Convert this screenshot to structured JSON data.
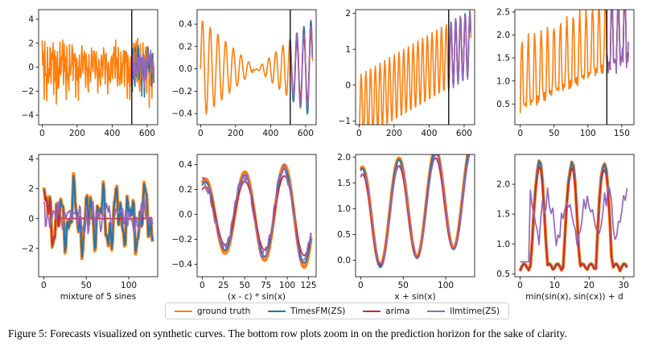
{
  "series_meta": [
    {
      "key": "truth",
      "name": "ground truth",
      "color": "#ff7f0e"
    },
    {
      "key": "timesfm",
      "name": "TimesFM(ZS)",
      "color": "#1f77b4"
    },
    {
      "key": "arima",
      "name": "arima",
      "color": "#d62728"
    },
    {
      "key": "llmtime",
      "name": "llmtime(ZS)",
      "color": "#9467bd"
    }
  ],
  "caption": "Figure 5: Forecasts visualized on synthetic curves. The bottom row plots zoom in on the prediction horizon for the sake of clarity.",
  "chart_data": [
    {
      "type": "line",
      "row": "top",
      "xlabel": "",
      "xlim": [
        -20,
        660
      ],
      "ylim": [
        -4.8,
        4.8
      ],
      "xticks": [
        0,
        200,
        400,
        600
      ],
      "xtick_labels": [
        "0",
        "200",
        "400",
        "600"
      ],
      "yticks": [
        -4,
        -2,
        0,
        2,
        4
      ],
      "ytick_labels": [
        "−4",
        "−2",
        "0",
        "2",
        "4"
      ],
      "split": 512,
      "series": [
        {
          "name": "ground truth",
          "generator": "mix5",
          "x_start": 0,
          "x_end": 640
        },
        {
          "name": "TimesFM(ZS)",
          "generator": "mix5_forecast",
          "x_start": 512,
          "x_end": 640
        },
        {
          "name": "arima",
          "generator": "flat",
          "x_start": 512,
          "x_end": 640
        },
        {
          "name": "llmtime(ZS)",
          "generator": "mix5_noisy",
          "x_start": 512,
          "x_end": 640
        }
      ]
    },
    {
      "type": "line",
      "row": "top",
      "xlabel": "",
      "xlim": [
        -20,
        660
      ],
      "ylim": [
        -0.5,
        0.53
      ],
      "xticks": [
        0,
        200,
        400,
        600
      ],
      "xtick_labels": [
        "0",
        "200",
        "400",
        "600"
      ],
      "yticks": [
        -0.4,
        -0.2,
        0,
        0.2,
        0.4
      ],
      "ytick_labels": [
        "−0.4",
        "−0.2",
        "0.0",
        "0.2",
        "0.4"
      ],
      "split": 512,
      "series": [
        {
          "name": "ground truth",
          "generator": "xc_sin",
          "x_start": 0,
          "x_end": 640
        },
        {
          "name": "TimesFM(ZS)",
          "generator": "xc_sin",
          "x_start": 512,
          "x_end": 640
        },
        {
          "name": "arima",
          "generator": "xc_sin_damped",
          "x_start": 512,
          "x_end": 640
        },
        {
          "name": "llmtime(ZS)",
          "generator": "xc_sin_noisy",
          "x_start": 512,
          "x_end": 640
        }
      ]
    },
    {
      "type": "line",
      "row": "top",
      "xlabel": "",
      "xlim": [
        -20,
        660
      ],
      "ylim": [
        -1.1,
        2.1
      ],
      "xticks": [
        0,
        200,
        400,
        600
      ],
      "xtick_labels": [
        "0",
        "200",
        "400",
        "600"
      ],
      "yticks": [
        -1,
        0,
        1,
        2
      ],
      "ytick_labels": [
        "−1",
        "0",
        "1",
        "2"
      ],
      "split": 512,
      "series": [
        {
          "name": "ground truth",
          "generator": "x_sin",
          "x_start": 0,
          "x_end": 640
        },
        {
          "name": "TimesFM(ZS)",
          "generator": "x_sin",
          "x_start": 512,
          "x_end": 640
        },
        {
          "name": "arima",
          "generator": "x_sin_damped",
          "x_start": 512,
          "x_end": 640
        },
        {
          "name": "llmtime(ZS)",
          "generator": "x_sin_noisy",
          "x_start": 512,
          "x_end": 640
        }
      ]
    },
    {
      "type": "line",
      "row": "top",
      "xlabel": "",
      "xlim": [
        -8,
        168
      ],
      "ylim": [
        0.05,
        2.55
      ],
      "xticks": [
        0,
        50,
        100,
        150
      ],
      "xtick_labels": [
        "0",
        "50",
        "100",
        "150"
      ],
      "yticks": [
        0.5,
        1.0,
        1.5,
        2.0,
        2.5
      ],
      "ytick_labels": [
        "0.5",
        "1.0",
        "1.5",
        "2.0",
        "2.5"
      ],
      "split": 128,
      "series": [
        {
          "name": "ground truth",
          "generator": "minsin",
          "x_start": 0,
          "x_end": 160
        },
        {
          "name": "TimesFM(ZS)",
          "generator": "minsin",
          "x_start": 128,
          "x_end": 160
        },
        {
          "name": "arima",
          "generator": "minsin",
          "x_start": 128,
          "x_end": 160
        },
        {
          "name": "llmtime(ZS)",
          "generator": "minsin_llm",
          "x_start": 128,
          "x_end": 160
        }
      ]
    },
    {
      "type": "line",
      "row": "bottom",
      "xlabel": "mixture of 5 sines",
      "xlim": [
        -6,
        134
      ],
      "ylim": [
        -3.9,
        4.3
      ],
      "xticks": [
        0,
        50,
        100
      ],
      "xtick_labels": [
        "0",
        "50",
        "100"
      ],
      "yticks": [
        -2,
        0,
        2,
        4
      ],
      "ytick_labels": [
        "−2",
        "0",
        "2",
        "4"
      ],
      "series": [
        {
          "name": "ground truth",
          "generator": "z_mix5",
          "x_start": 0,
          "x_end": 128
        },
        {
          "name": "TimesFM(ZS)",
          "generator": "z_mix5_tfm",
          "x_start": 0,
          "x_end": 128
        },
        {
          "name": "arima",
          "generator": "z_mix5_arima",
          "x_start": 0,
          "x_end": 128
        },
        {
          "name": "llmtime(ZS)",
          "generator": "z_mix5_llm",
          "x_start": 0,
          "x_end": 128
        }
      ]
    },
    {
      "type": "line",
      "row": "bottom",
      "xlabel": "(x - c) * sin(x)",
      "xlim": [
        -6,
        134
      ],
      "ylim": [
        -0.5,
        0.48
      ],
      "xticks": [
        0,
        25,
        50,
        75,
        100,
        125
      ],
      "xtick_labels": [
        "0",
        "25",
        "50",
        "75",
        "100",
        "125"
      ],
      "yticks": [
        -0.4,
        -0.2,
        0,
        0.2,
        0.4
      ],
      "ytick_labels": [
        "−0.4",
        "−0.2",
        "0.0",
        "0.2",
        "0.4"
      ],
      "series": [
        {
          "name": "ground truth",
          "generator": "z_xc",
          "x_start": 0,
          "x_end": 128
        },
        {
          "name": "TimesFM(ZS)",
          "generator": "z_xc_tfm",
          "x_start": 0,
          "x_end": 128
        },
        {
          "name": "arima",
          "generator": "z_xc_arima",
          "x_start": 0,
          "x_end": 128
        },
        {
          "name": "llmtime(ZS)",
          "generator": "z_xc_llm",
          "x_start": 0,
          "x_end": 128
        }
      ]
    },
    {
      "type": "line",
      "row": "bottom",
      "xlabel": "x + sin(x)",
      "xlim": [
        -6,
        134
      ],
      "ylim": [
        -0.32,
        2.05
      ],
      "xticks": [
        0,
        50,
        100
      ],
      "xtick_labels": [
        "0",
        "50",
        "100"
      ],
      "yticks": [
        0,
        0.5,
        1.0,
        1.5,
        2.0
      ],
      "ytick_labels": [
        "0.0",
        "0.5",
        "1.0",
        "1.5",
        "2.0"
      ],
      "series": [
        {
          "name": "ground truth",
          "generator": "z_xs",
          "x_start": 0,
          "x_end": 128
        },
        {
          "name": "TimesFM(ZS)",
          "generator": "z_xs_tfm",
          "x_start": 0,
          "x_end": 128
        },
        {
          "name": "arima",
          "generator": "z_xs_arima",
          "x_start": 0,
          "x_end": 128
        },
        {
          "name": "llmtime(ZS)",
          "generator": "z_xs_llm",
          "x_start": 0,
          "x_end": 128
        }
      ]
    },
    {
      "type": "line",
      "row": "bottom",
      "xlabel": "min(sin(x), sin(cx)) + d",
      "xlim": [
        -1.5,
        33
      ],
      "ylim": [
        0.45,
        2.5
      ],
      "xticks": [
        0,
        10,
        20,
        30
      ],
      "xtick_labels": [
        "0",
        "10",
        "20",
        "30"
      ],
      "yticks": [
        0.5,
        1.0,
        1.5,
        2.0
      ],
      "ytick_labels": [
        "0.5",
        "1.0",
        "1.5",
        "2.0"
      ],
      "series": [
        {
          "name": "ground truth",
          "generator": "z_mn",
          "x_start": 0,
          "x_end": 31
        },
        {
          "name": "TimesFM(ZS)",
          "generator": "z_mn",
          "x_start": 0,
          "x_end": 31
        },
        {
          "name": "arima",
          "generator": "z_mn_arima",
          "x_start": 0,
          "x_end": 31
        },
        {
          "name": "llmtime(ZS)",
          "generator": "z_mn_llm",
          "x_start": 0,
          "x_end": 31
        }
      ]
    }
  ]
}
